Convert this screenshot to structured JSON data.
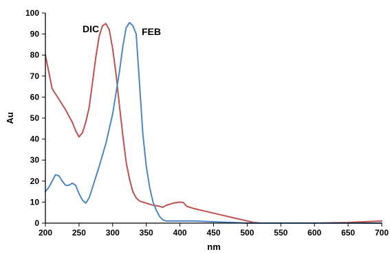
{
  "chart_data": {
    "type": "line",
    "title": "",
    "xlabel": "nm",
    "ylabel": "Au",
    "xlim": [
      200,
      700
    ],
    "ylim": [
      0,
      100
    ],
    "x_ticks": [
      "200",
      "250",
      "300",
      "350",
      "400",
      "450",
      "500",
      "550",
      "600",
      "650",
      "700"
    ],
    "y_ticks": [
      "0",
      "10",
      "20",
      "30",
      "40",
      "50",
      "60",
      "70",
      "80",
      "90",
      "100"
    ],
    "grid": false,
    "legend": "none",
    "series": [
      {
        "name": "DIC",
        "color": "#c0504d",
        "points": [
          [
            200,
            80
          ],
          [
            210,
            64
          ],
          [
            220,
            59
          ],
          [
            230,
            54
          ],
          [
            240,
            48
          ],
          [
            245,
            44
          ],
          [
            250,
            41
          ],
          [
            255,
            43
          ],
          [
            260,
            48
          ],
          [
            265,
            55
          ],
          [
            270,
            67
          ],
          [
            275,
            79
          ],
          [
            280,
            89
          ],
          [
            285,
            94
          ],
          [
            290,
            95
          ],
          [
            295,
            92
          ],
          [
            300,
            83
          ],
          [
            305,
            71
          ],
          [
            310,
            56
          ],
          [
            315,
            42
          ],
          [
            320,
            29
          ],
          [
            325,
            21
          ],
          [
            330,
            15
          ],
          [
            335,
            12
          ],
          [
            340,
            10.5
          ],
          [
            350,
            9.5
          ],
          [
            360,
            8.5
          ],
          [
            370,
            8
          ],
          [
            374,
            7.5
          ],
          [
            380,
            8.5
          ],
          [
            390,
            9.5
          ],
          [
            400,
            10
          ],
          [
            405,
            9.8
          ],
          [
            410,
            8
          ],
          [
            420,
            7
          ],
          [
            440,
            5.5
          ],
          [
            460,
            4
          ],
          [
            480,
            2.5
          ],
          [
            500,
            1
          ],
          [
            510,
            0.3
          ],
          [
            520,
            0
          ],
          [
            600,
            0
          ],
          [
            650,
            0.3
          ],
          [
            700,
            1
          ]
        ]
      },
      {
        "name": "FEB",
        "color": "#4a86c8",
        "points": [
          [
            200,
            15
          ],
          [
            205,
            17
          ],
          [
            210,
            20
          ],
          [
            215,
            23
          ],
          [
            220,
            22.5
          ],
          [
            225,
            20
          ],
          [
            230,
            18
          ],
          [
            235,
            18
          ],
          [
            240,
            19
          ],
          [
            245,
            18
          ],
          [
            250,
            14
          ],
          [
            255,
            11
          ],
          [
            260,
            9.5
          ],
          [
            265,
            12
          ],
          [
            270,
            17
          ],
          [
            280,
            27
          ],
          [
            290,
            38
          ],
          [
            300,
            52
          ],
          [
            310,
            72
          ],
          [
            315,
            84
          ],
          [
            320,
            93
          ],
          [
            325,
            95.5
          ],
          [
            330,
            94
          ],
          [
            335,
            90
          ],
          [
            340,
            66
          ],
          [
            345,
            42
          ],
          [
            350,
            27
          ],
          [
            355,
            17
          ],
          [
            360,
            10
          ],
          [
            365,
            6
          ],
          [
            370,
            3
          ],
          [
            375,
            1.5
          ],
          [
            380,
            1
          ],
          [
            400,
            1
          ],
          [
            420,
            1
          ],
          [
            440,
            0.8
          ],
          [
            460,
            0.5
          ],
          [
            480,
            0.3
          ],
          [
            500,
            0
          ],
          [
            550,
            0
          ],
          [
            600,
            0
          ],
          [
            650,
            0
          ],
          [
            700,
            0
          ]
        ]
      }
    ]
  }
}
